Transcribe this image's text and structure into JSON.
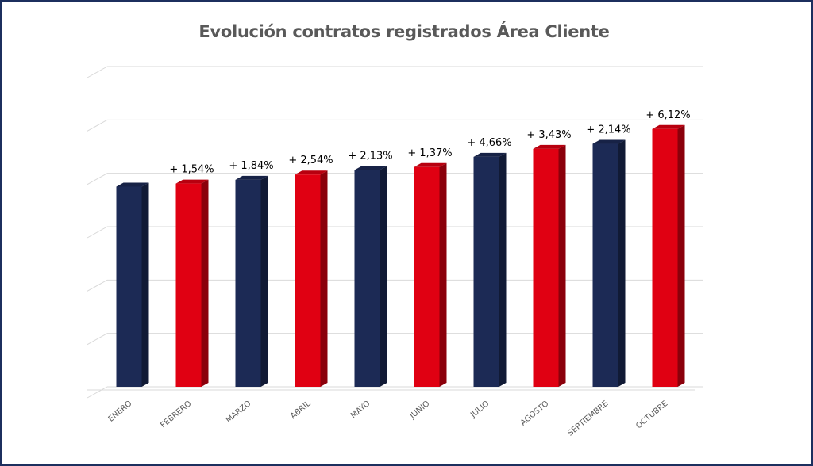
{
  "chart_data": {
    "type": "bar",
    "title": "Evolución contratos registrados Área Cliente",
    "categories": [
      "ENERO",
      "FEBRERO",
      "MARZO",
      "ABRIL",
      "MAYO",
      "JUNIO",
      "JULIO",
      "AGOSTO",
      "SEPTIEMBRE",
      "OCTUBRE"
    ],
    "values": [
      100,
      101.54,
      103.41,
      106.04,
      108.3,
      109.78,
      114.9,
      118.84,
      121.38,
      128.81
    ],
    "data_labels": [
      "",
      "+ 1,54%",
      "+ 1,84%",
      "+ 2,54%",
      "+ 2,13%",
      "+ 1,37%",
      "+ 4,66%",
      "+ 3,43%",
      "+ 2,14%",
      "+ 6,12%"
    ],
    "bar_colors": [
      "#1c2a55",
      "#e00012",
      "#1c2a55",
      "#e00012",
      "#1c2a55",
      "#e00012",
      "#1c2a55",
      "#e00012",
      "#1c2a55",
      "#e00012"
    ],
    "ylim": [
      0,
      160
    ],
    "y_gridlines": 6,
    "y_tick_labels_visible": false,
    "xlabel": "",
    "ylabel": "",
    "grid": true,
    "legend": "none",
    "style": "3d-column"
  },
  "colors": {
    "frame": "#1c2f5e",
    "navy": "#1c2a55",
    "red": "#e00012",
    "grid": "#d9d9d9",
    "title": "#595959",
    "axis_label": "#595959"
  }
}
